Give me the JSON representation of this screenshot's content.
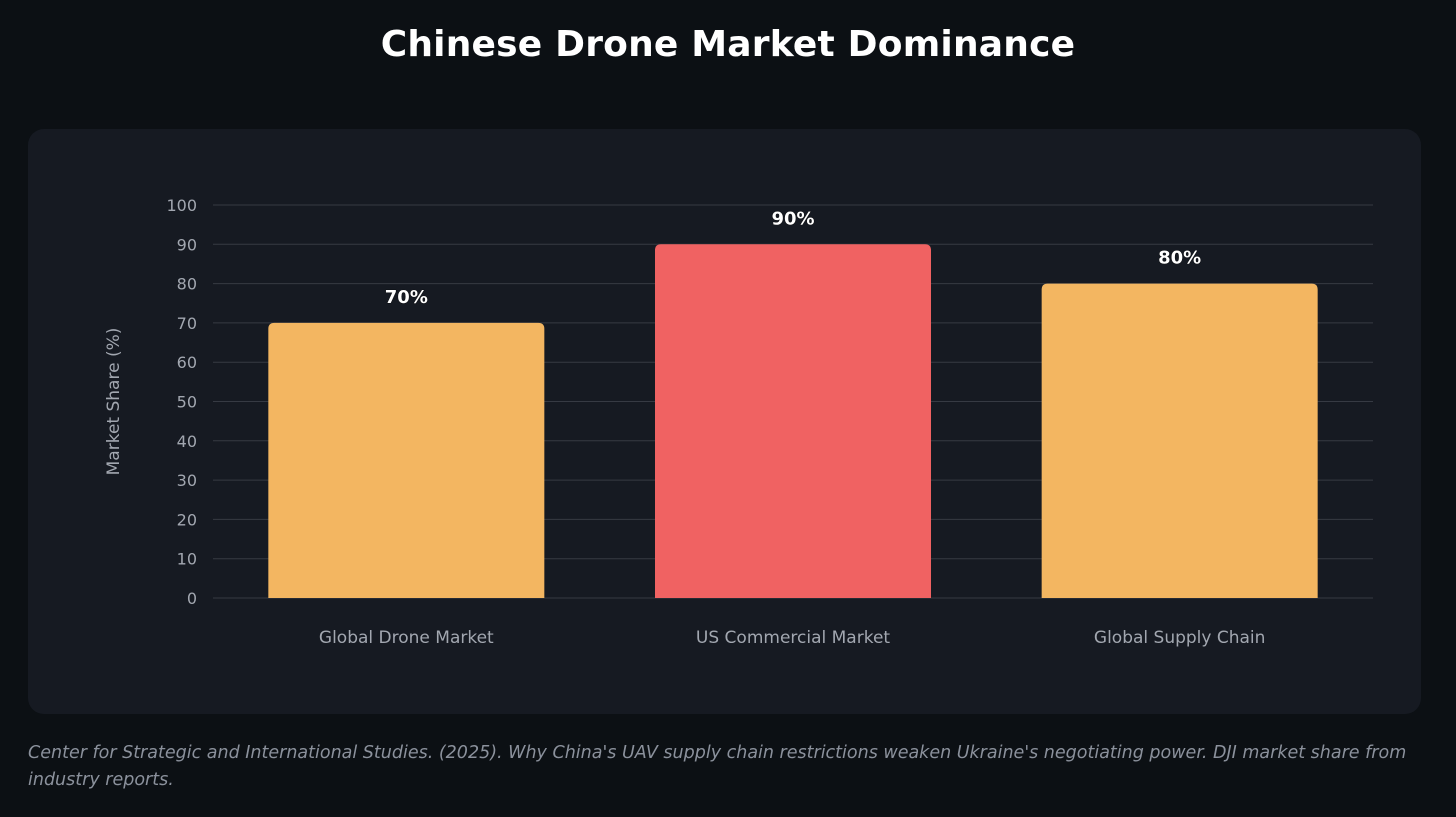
{
  "page": {
    "title": "Chinese Drone Market Dominance",
    "source": "Center for Strategic and International Studies. (2025). Why China's UAV supply chain restrictions weaken Ukraine's negotiating power. DJI market share from industry reports."
  },
  "colors": {
    "background": "#0c1014",
    "card": "#161a22",
    "grid": "#363a43",
    "tick_text": "#a2a7b0",
    "label_text": "#ffffff",
    "bar_orange": "#f3b661",
    "bar_red": "#f06262"
  },
  "chart_data": {
    "type": "bar",
    "title": "Chinese Drone Market Dominance",
    "xlabel": "",
    "ylabel": "Market Share (%)",
    "categories": [
      "Global Drone Market",
      "US Commercial Market",
      "Global Supply Chain"
    ],
    "values": [
      70,
      90,
      80
    ],
    "value_labels": [
      "70%",
      "90%",
      "80%"
    ],
    "bar_colors": [
      "#f3b661",
      "#f06262",
      "#f3b661"
    ],
    "ylim": [
      0,
      100
    ],
    "yticks": [
      0,
      10,
      20,
      30,
      40,
      50,
      60,
      70,
      80,
      90,
      100
    ],
    "grid": true,
    "legend": "none"
  }
}
